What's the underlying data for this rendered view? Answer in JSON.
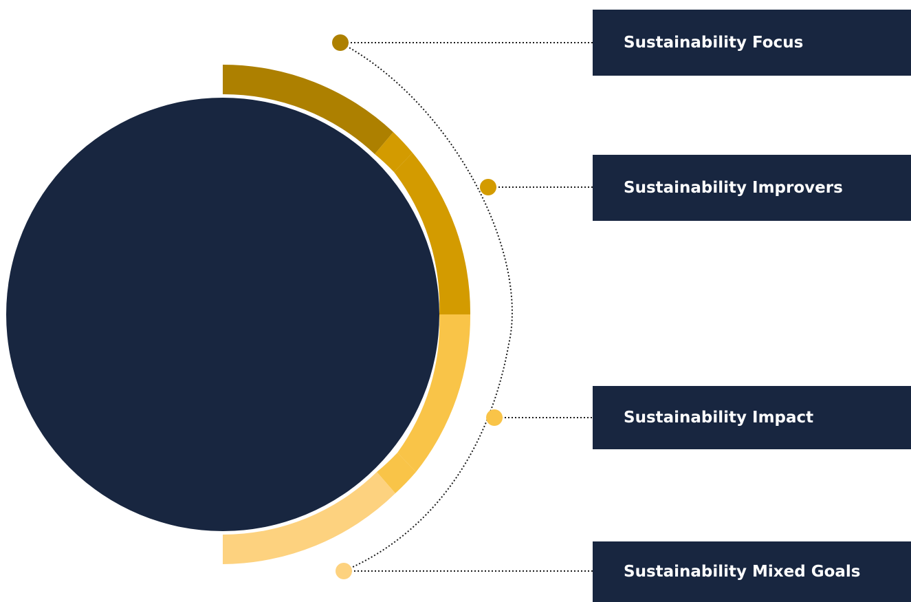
{
  "colors": {
    "navy": "#182640",
    "dark_gold": "#AD8000",
    "gold": "#D39B00",
    "yellow": "#F9C448",
    "light_yellow": "#FDD27F",
    "connector": "#1a1a1a"
  },
  "items": [
    {
      "label": "Sustainability Focus",
      "color_key": "dark_gold"
    },
    {
      "label": "Sustainability Improvers",
      "color_key": "gold"
    },
    {
      "label": "Sustainability Impact",
      "color_key": "yellow"
    },
    {
      "label": "Sustainability Mixed Goals",
      "color_key": "light_yellow"
    }
  ]
}
